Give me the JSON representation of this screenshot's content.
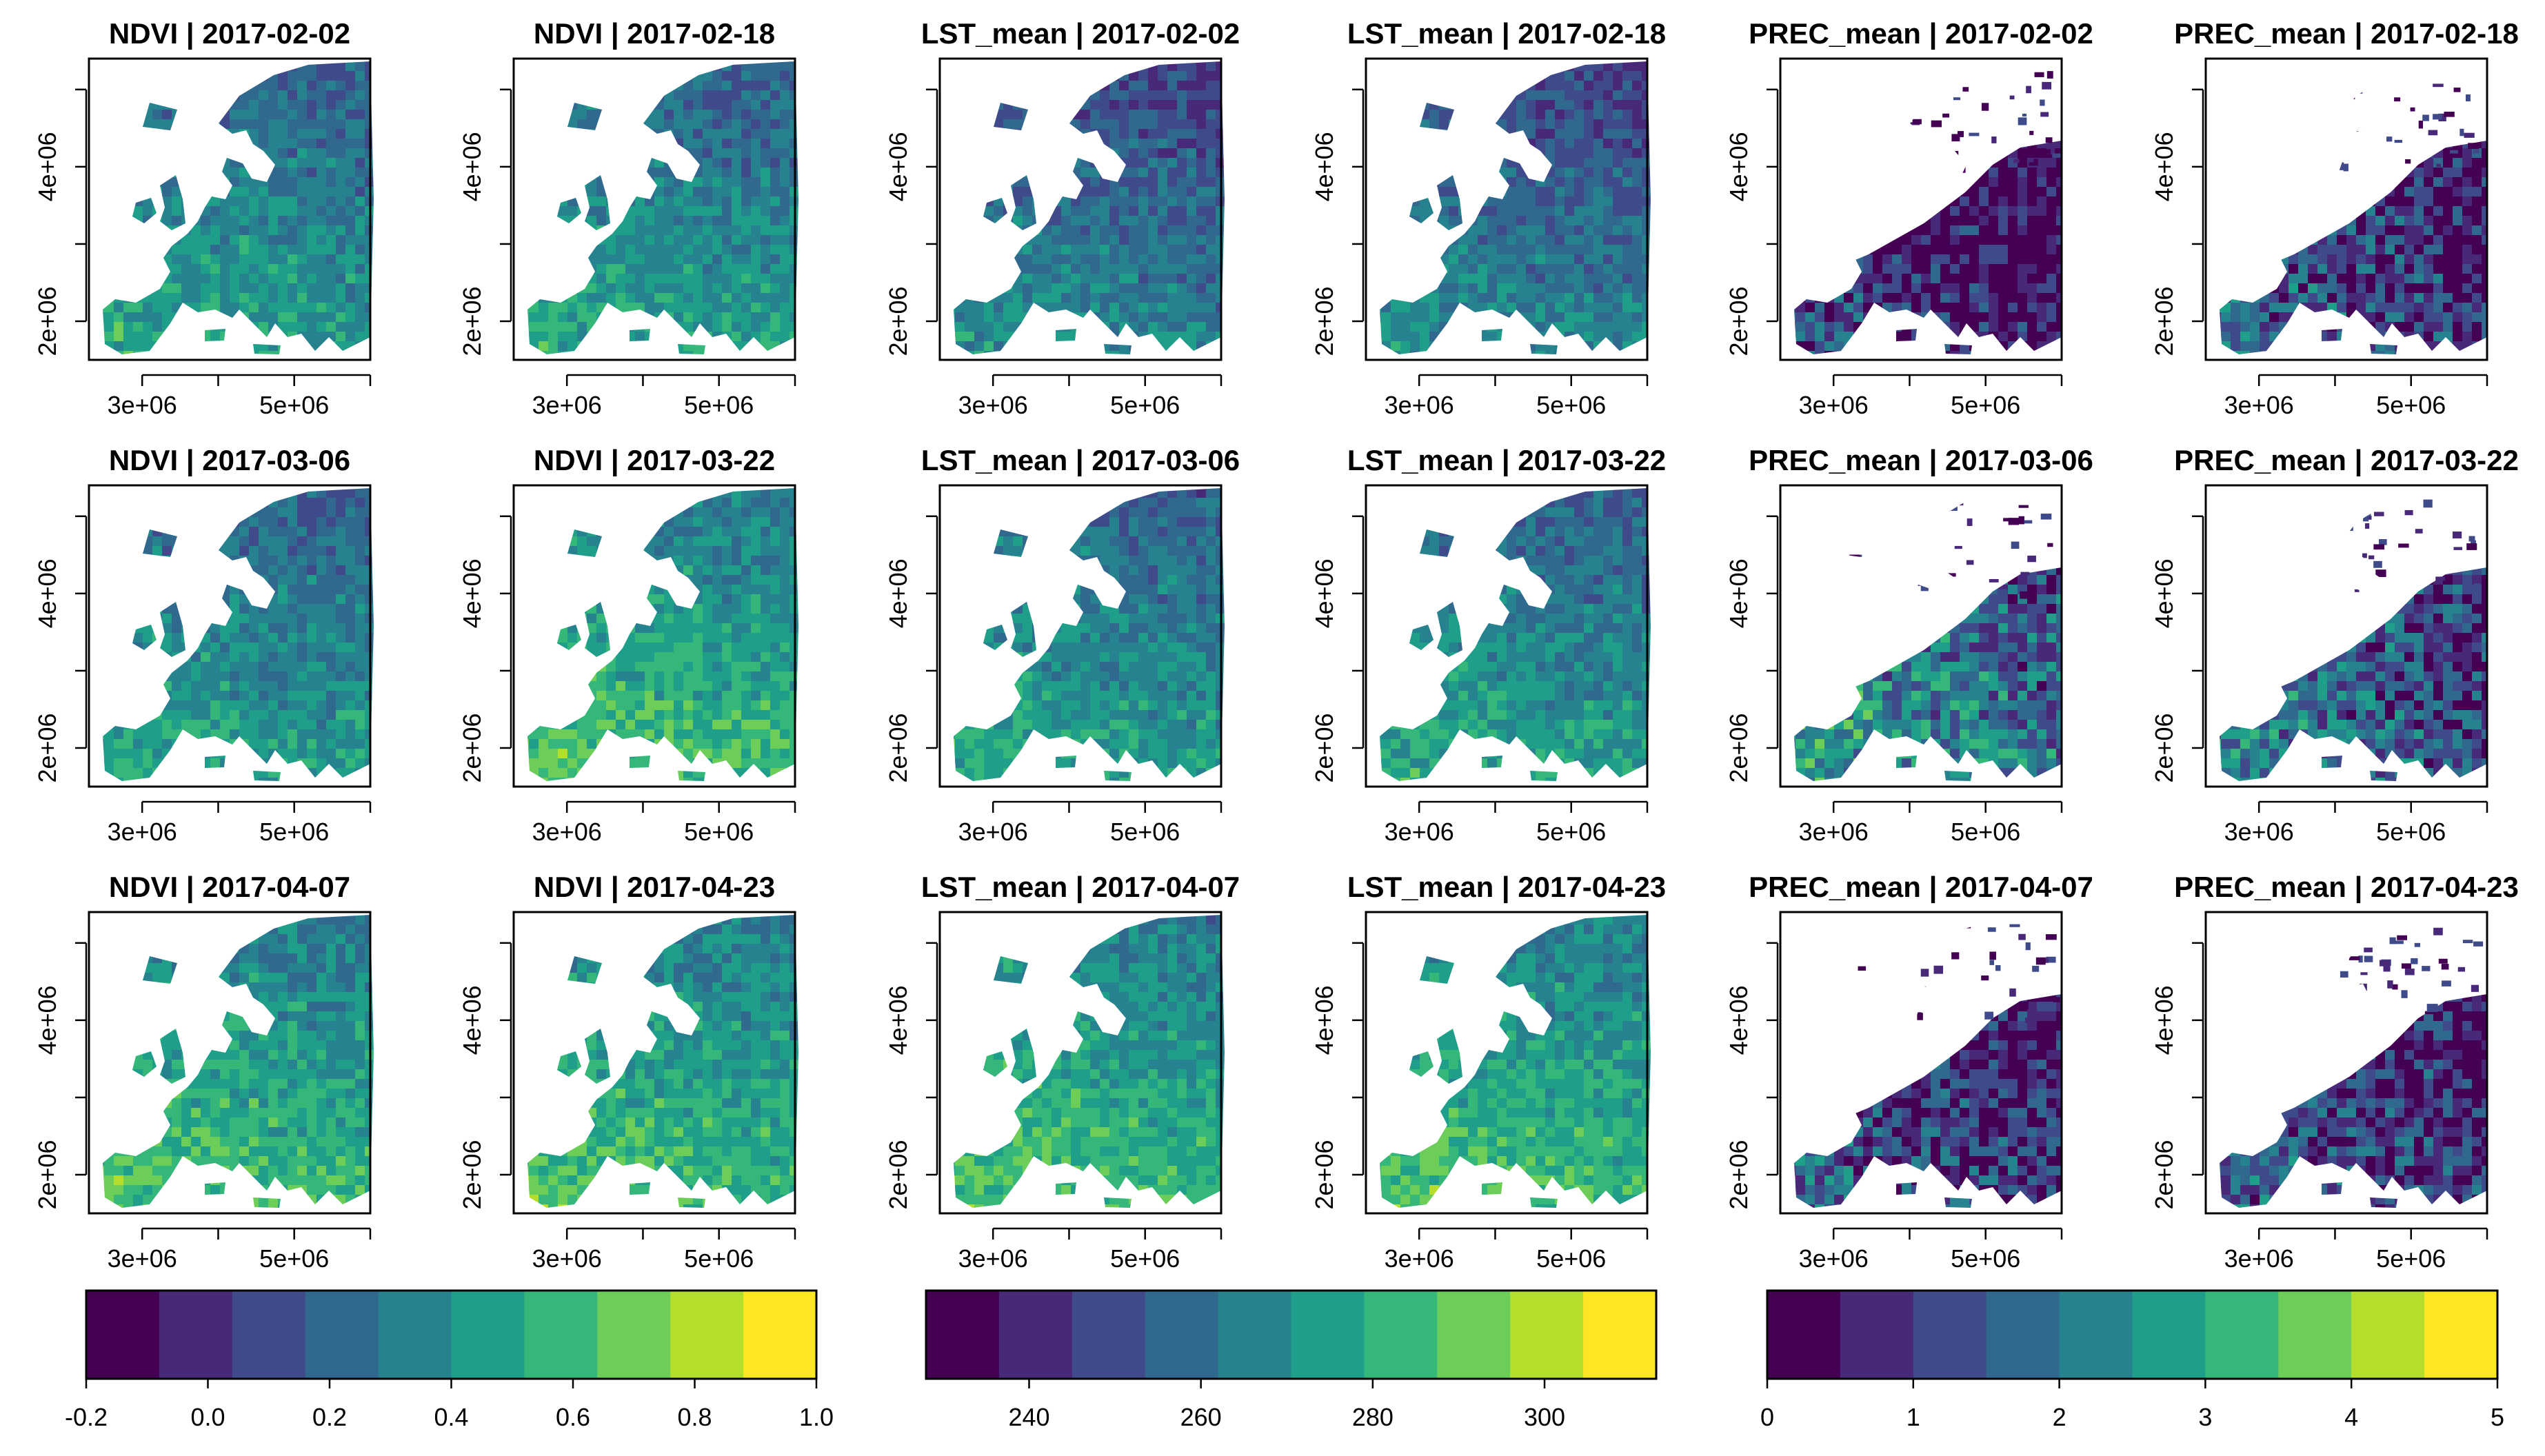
{
  "chart_data": {
    "type": "heatmap",
    "title": "",
    "layout": "3 rows x 6 panels of raster maps over Europe, with 3 shared color bars",
    "x_axis": {
      "label": "",
      "ticks": [
        3000000,
        5000000
      ],
      "tick_labels": [
        "3e+06",
        "5e+06"
      ],
      "range": [
        2300000,
        6000000
      ]
    },
    "y_axis": {
      "label": "",
      "ticks": [
        2000000,
        4000000
      ],
      "tick_labels": [
        "2e+06",
        "4e+06"
      ],
      "range": [
        1500000,
        5400000
      ]
    },
    "panels": [
      {
        "variable": "NDVI",
        "date": "2017-02-02",
        "title": "NDVI | 2017-02-02",
        "colorbar": 0,
        "approx_mean": 0.45
      },
      {
        "variable": "NDVI",
        "date": "2017-02-18",
        "title": "NDVI | 2017-02-18",
        "colorbar": 0,
        "approx_mean": 0.45
      },
      {
        "variable": "LST_mean",
        "date": "2017-02-02",
        "title": "LST_mean | 2017-02-02",
        "colorbar": 1,
        "approx_mean": 268
      },
      {
        "variable": "LST_mean",
        "date": "2017-02-18",
        "title": "LST_mean | 2017-02-18",
        "colorbar": 1,
        "approx_mean": 268
      },
      {
        "variable": "PREC_mean",
        "date": "2017-02-02",
        "title": "PREC_mean | 2017-02-02",
        "colorbar": 2,
        "approx_mean": 0.8
      },
      {
        "variable": "PREC_mean",
        "date": "2017-02-18",
        "title": "PREC_mean | 2017-02-18",
        "colorbar": 2,
        "approx_mean": 1.0
      },
      {
        "variable": "NDVI",
        "date": "2017-03-06",
        "title": "NDVI | 2017-03-06",
        "colorbar": 0,
        "approx_mean": 0.5
      },
      {
        "variable": "NDVI",
        "date": "2017-03-22",
        "title": "NDVI | 2017-03-22",
        "colorbar": 0,
        "approx_mean": 0.55
      },
      {
        "variable": "LST_mean",
        "date": "2017-03-06",
        "title": "LST_mean | 2017-03-06",
        "colorbar": 1,
        "approx_mean": 274
      },
      {
        "variable": "LST_mean",
        "date": "2017-03-22",
        "title": "LST_mean | 2017-03-22",
        "colorbar": 1,
        "approx_mean": 278
      },
      {
        "variable": "PREC_mean",
        "date": "2017-03-06",
        "title": "PREC_mean | 2017-03-06",
        "colorbar": 2,
        "approx_mean": 2.0
      },
      {
        "variable": "PREC_mean",
        "date": "2017-03-22",
        "title": "PREC_mean | 2017-03-22",
        "colorbar": 2,
        "approx_mean": 1.8
      },
      {
        "variable": "NDVI",
        "date": "2017-04-07",
        "title": "NDVI | 2017-04-07",
        "colorbar": 0,
        "approx_mean": 0.6
      },
      {
        "variable": "NDVI",
        "date": "2017-04-23",
        "title": "NDVI | 2017-04-23",
        "colorbar": 0,
        "approx_mean": 0.6
      },
      {
        "variable": "LST_mean",
        "date": "2017-04-07",
        "title": "LST_mean | 2017-04-07",
        "colorbar": 1,
        "approx_mean": 284
      },
      {
        "variable": "LST_mean",
        "date": "2017-04-23",
        "title": "LST_mean | 2017-04-23",
        "colorbar": 1,
        "approx_mean": 285
      },
      {
        "variable": "PREC_mean",
        "date": "2017-04-07",
        "title": "PREC_mean | 2017-04-07",
        "colorbar": 2,
        "approx_mean": 1.2
      },
      {
        "variable": "PREC_mean",
        "date": "2017-04-23",
        "title": "PREC_mean | 2017-04-23",
        "colorbar": 2,
        "approx_mean": 1.0
      }
    ],
    "colorbars": [
      {
        "variable": "NDVI",
        "min": -0.2,
        "max": 1.0,
        "bins": 10,
        "ticks": [
          -0.2,
          0.0,
          0.2,
          0.4,
          0.6,
          0.8,
          1.0
        ],
        "tick_labels": [
          "-0.2",
          "0.0",
          "0.2",
          "0.4",
          "0.6",
          "0.8",
          "1.0"
        ]
      },
      {
        "variable": "LST_mean",
        "min": 228,
        "max": 313,
        "bins": 10,
        "ticks": [
          240,
          260,
          280,
          300
        ],
        "tick_labels": [
          "240",
          "260",
          "280",
          "300"
        ]
      },
      {
        "variable": "PREC_mean",
        "min": 0,
        "max": 5,
        "bins": 10,
        "ticks": [
          0,
          1,
          2,
          3,
          4,
          5
        ],
        "tick_labels": [
          "0",
          "1",
          "2",
          "3",
          "4",
          "5"
        ]
      }
    ],
    "palette": [
      "#440154",
      "#482878",
      "#3E4A89",
      "#31688E",
      "#26828E",
      "#1F9E89",
      "#35B779",
      "#6DCD59",
      "#B4DE2C",
      "#FDE725"
    ]
  }
}
